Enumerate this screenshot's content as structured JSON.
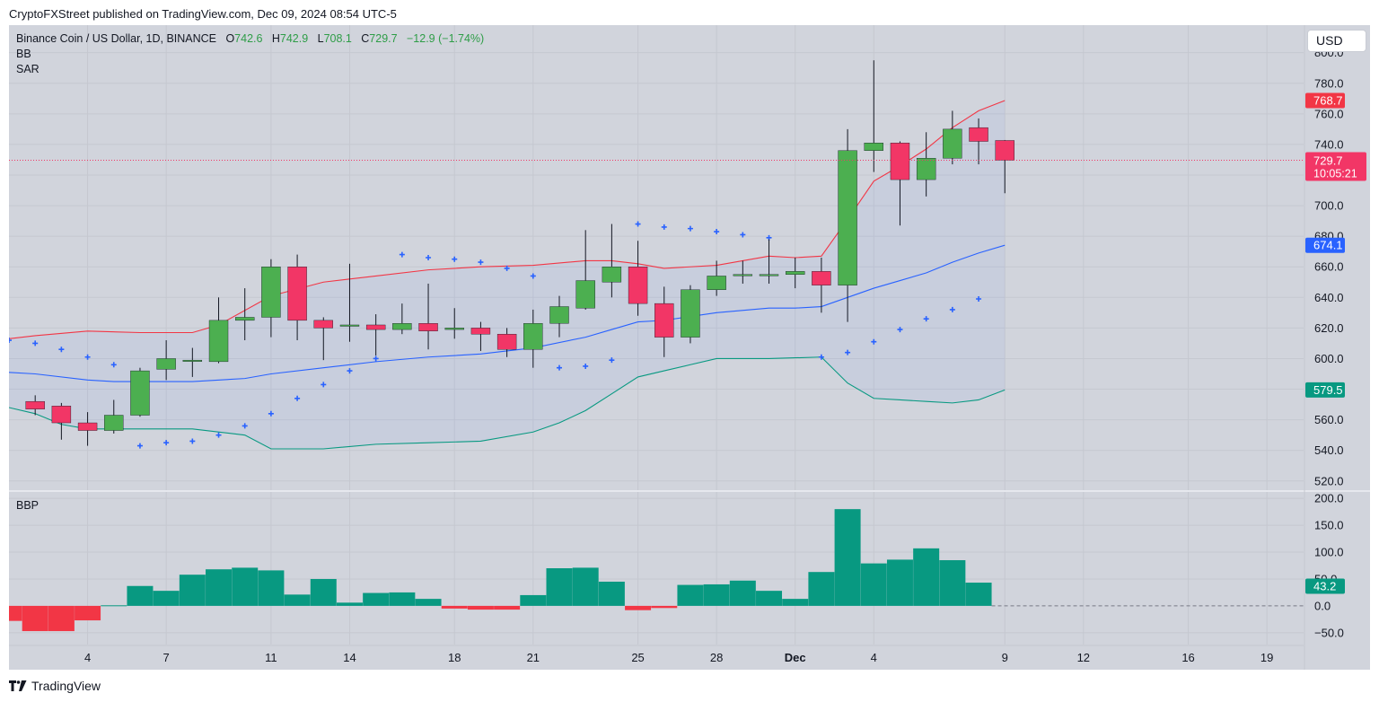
{
  "header": {
    "published": "CryptoFXStreet published on TradingView.com, Dec 09, 2024 08:54 UTC-5"
  },
  "legend": {
    "symbol": "Binance Coin / US Dollar, 1D, BINANCE",
    "o_label": "O",
    "o": "742.6",
    "h_label": "H",
    "h": "742.9",
    "l_label": "L",
    "l": "708.1",
    "c_label": "C",
    "c": "729.7",
    "change": "−12.9 (−1.74%)",
    "indicator1": "BB",
    "indicator2": "SAR",
    "indicator3": "BBP"
  },
  "currency_button": "USD",
  "footer": {
    "brand": "TradingView"
  },
  "colors": {
    "up": "#4caf50",
    "down": "#f23666",
    "bb_upper": "#f23645",
    "bb_basis": "#2962ff",
    "bb_lower": "#089981",
    "sar": "#2962ff",
    "bbp_pos": "#089981",
    "bbp_neg": "#f23645",
    "bg": "#d1d4dc"
  },
  "chart_data": [
    {
      "type": "candlestick",
      "title": "Binance Coin / US Dollar, 1D, BINANCE",
      "x_ticks": [
        {
          "day": 4,
          "label": "4"
        },
        {
          "day": 7,
          "label": "7"
        },
        {
          "day": 11,
          "label": "11"
        },
        {
          "day": 14,
          "label": "14"
        },
        {
          "day": 18,
          "label": "18"
        },
        {
          "day": 21,
          "label": "21"
        },
        {
          "day": 25,
          "label": "25"
        },
        {
          "day": 28,
          "label": "28"
        },
        {
          "day": 31,
          "label": "Dec"
        },
        {
          "day": 34,
          "label": "4"
        },
        {
          "day": 39,
          "label": "9"
        },
        {
          "day": 42,
          "label": "12"
        },
        {
          "day": 46,
          "label": "16"
        },
        {
          "day": 49,
          "label": "19"
        }
      ],
      "y_ticks": [
        "520.0",
        "540.0",
        "560.0",
        "580.0",
        "600.0",
        "620.0",
        "640.0",
        "660.0",
        "680.0",
        "700.0",
        "720.0",
        "740.0",
        "760.0",
        "780.0",
        "800.0"
      ],
      "ylim": [
        514,
        818
      ],
      "xlim": [
        1.0,
        50.4
      ],
      "candles": [
        {
          "day": 2,
          "o": 572,
          "h": 576,
          "l": 563,
          "c": 567
        },
        {
          "day": 3,
          "o": 569,
          "h": 571,
          "l": 547,
          "c": 558
        },
        {
          "day": 4,
          "o": 558,
          "h": 565,
          "l": 543,
          "c": 553
        },
        {
          "day": 5,
          "o": 553,
          "h": 573,
          "l": 551,
          "c": 563
        },
        {
          "day": 6,
          "o": 563,
          "h": 594,
          "l": 562,
          "c": 592
        },
        {
          "day": 7,
          "o": 593,
          "h": 612,
          "l": 586,
          "c": 600
        },
        {
          "day": 8,
          "o": 599,
          "h": 607,
          "l": 588,
          "c": 599
        },
        {
          "day": 9,
          "o": 598,
          "h": 640,
          "l": 597,
          "c": 625
        },
        {
          "day": 10,
          "o": 625,
          "h": 646,
          "l": 612,
          "c": 627
        },
        {
          "day": 11,
          "o": 627,
          "h": 665,
          "l": 614,
          "c": 660
        },
        {
          "day": 12,
          "o": 660,
          "h": 668,
          "l": 612,
          "c": 625
        },
        {
          "day": 13,
          "o": 625,
          "h": 627,
          "l": 599,
          "c": 620
        },
        {
          "day": 14,
          "o": 622,
          "h": 662,
          "l": 611,
          "c": 622
        },
        {
          "day": 15,
          "o": 622,
          "h": 629,
          "l": 602,
          "c": 619
        },
        {
          "day": 16,
          "o": 619,
          "h": 636,
          "l": 616,
          "c": 623
        },
        {
          "day": 17,
          "o": 623,
          "h": 649,
          "l": 606,
          "c": 618
        },
        {
          "day": 18,
          "o": 619,
          "h": 633,
          "l": 613,
          "c": 620
        },
        {
          "day": 19,
          "o": 620,
          "h": 624,
          "l": 605,
          "c": 616
        },
        {
          "day": 20,
          "o": 616,
          "h": 620,
          "l": 601,
          "c": 606
        },
        {
          "day": 21,
          "o": 606,
          "h": 632,
          "l": 594,
          "c": 623
        },
        {
          "day": 22,
          "o": 623,
          "h": 641,
          "l": 614,
          "c": 634
        },
        {
          "day": 23,
          "o": 633,
          "h": 684,
          "l": 632,
          "c": 651
        },
        {
          "day": 24,
          "o": 650,
          "h": 688,
          "l": 640,
          "c": 660
        },
        {
          "day": 25,
          "o": 660,
          "h": 677,
          "l": 628,
          "c": 636
        },
        {
          "day": 26,
          "o": 636,
          "h": 647,
          "l": 601,
          "c": 614
        },
        {
          "day": 27,
          "o": 614,
          "h": 648,
          "l": 610,
          "c": 645
        },
        {
          "day": 28,
          "o": 645,
          "h": 664,
          "l": 641,
          "c": 654
        },
        {
          "day": 29,
          "o": 655,
          "h": 664,
          "l": 649,
          "c": 655
        },
        {
          "day": 30,
          "o": 655,
          "h": 678,
          "l": 649,
          "c": 655
        },
        {
          "day": 31,
          "o": 655,
          "h": 666,
          "l": 646,
          "c": 657
        },
        {
          "day": 32,
          "o": 657,
          "h": 666,
          "l": 630,
          "c": 648
        },
        {
          "day": 33,
          "o": 648,
          "h": 750,
          "l": 624,
          "c": 736
        },
        {
          "day": 34,
          "o": 736,
          "h": 795,
          "l": 722,
          "c": 741
        },
        {
          "day": 35,
          "o": 741,
          "h": 742,
          "l": 687,
          "c": 717
        },
        {
          "day": 36,
          "o": 717,
          "h": 748,
          "l": 706,
          "c": 731
        },
        {
          "day": 37,
          "o": 731,
          "h": 762,
          "l": 727,
          "c": 750
        },
        {
          "day": 38,
          "o": 751,
          "h": 757,
          "l": 727,
          "c": 742
        },
        {
          "day": 39,
          "o": 742.6,
          "h": 742.9,
          "l": 708.1,
          "c": 729.7
        }
      ],
      "bb_upper": [
        {
          "day": 1,
          "v": 613
        },
        {
          "day": 2,
          "v": 615
        },
        {
          "day": 4,
          "v": 618
        },
        {
          "day": 6,
          "v": 617
        },
        {
          "day": 8,
          "v": 617
        },
        {
          "day": 9,
          "v": 622
        },
        {
          "day": 11,
          "v": 641
        },
        {
          "day": 13,
          "v": 650
        },
        {
          "day": 15,
          "v": 654
        },
        {
          "day": 17,
          "v": 658
        },
        {
          "day": 19,
          "v": 660
        },
        {
          "day": 21,
          "v": 661
        },
        {
          "day": 23,
          "v": 664
        },
        {
          "day": 24,
          "v": 664
        },
        {
          "day": 25,
          "v": 662
        },
        {
          "day": 26,
          "v": 659
        },
        {
          "day": 28,
          "v": 661
        },
        {
          "day": 29,
          "v": 664
        },
        {
          "day": 30,
          "v": 667
        },
        {
          "day": 31,
          "v": 666
        },
        {
          "day": 32,
          "v": 667
        },
        {
          "day": 33,
          "v": 691
        },
        {
          "day": 34,
          "v": 716
        },
        {
          "day": 35,
          "v": 726
        },
        {
          "day": 36,
          "v": 737
        },
        {
          "day": 37,
          "v": 751
        },
        {
          "day": 38,
          "v": 762
        },
        {
          "day": 39,
          "v": 768.7
        }
      ],
      "bb_basis": [
        {
          "day": 1,
          "v": 591
        },
        {
          "day": 2,
          "v": 590
        },
        {
          "day": 4,
          "v": 586
        },
        {
          "day": 5,
          "v": 585
        },
        {
          "day": 6,
          "v": 585
        },
        {
          "day": 8,
          "v": 585
        },
        {
          "day": 10,
          "v": 587
        },
        {
          "day": 11,
          "v": 590
        },
        {
          "day": 13,
          "v": 594
        },
        {
          "day": 15,
          "v": 598
        },
        {
          "day": 17,
          "v": 601
        },
        {
          "day": 19,
          "v": 603
        },
        {
          "day": 21,
          "v": 607
        },
        {
          "day": 23,
          "v": 614
        },
        {
          "day": 24,
          "v": 619
        },
        {
          "day": 25,
          "v": 624
        },
        {
          "day": 26,
          "v": 625
        },
        {
          "day": 28,
          "v": 630
        },
        {
          "day": 30,
          "v": 633
        },
        {
          "day": 31,
          "v": 633
        },
        {
          "day": 32,
          "v": 634
        },
        {
          "day": 33,
          "v": 640
        },
        {
          "day": 34,
          "v": 646
        },
        {
          "day": 35,
          "v": 651
        },
        {
          "day": 36,
          "v": 656
        },
        {
          "day": 37,
          "v": 663
        },
        {
          "day": 38,
          "v": 669
        },
        {
          "day": 39,
          "v": 674.1
        }
      ],
      "bb_lower": [
        {
          "day": 1,
          "v": 568
        },
        {
          "day": 2,
          "v": 564
        },
        {
          "day": 3,
          "v": 557
        },
        {
          "day": 4,
          "v": 554
        },
        {
          "day": 8,
          "v": 554
        },
        {
          "day": 10,
          "v": 550
        },
        {
          "day": 11,
          "v": 541
        },
        {
          "day": 13,
          "v": 541
        },
        {
          "day": 15,
          "v": 544
        },
        {
          "day": 17,
          "v": 545
        },
        {
          "day": 19,
          "v": 546
        },
        {
          "day": 21,
          "v": 552
        },
        {
          "day": 22,
          "v": 558
        },
        {
          "day": 23,
          "v": 566
        },
        {
          "day": 24,
          "v": 577
        },
        {
          "day": 25,
          "v": 588
        },
        {
          "day": 26,
          "v": 592
        },
        {
          "day": 27,
          "v": 596
        },
        {
          "day": 28,
          "v": 600
        },
        {
          "day": 30,
          "v": 600
        },
        {
          "day": 32,
          "v": 601
        },
        {
          "day": 33,
          "v": 584
        },
        {
          "day": 34,
          "v": 574
        },
        {
          "day": 35,
          "v": 573
        },
        {
          "day": 36,
          "v": 572
        },
        {
          "day": 37,
          "v": 571
        },
        {
          "day": 38,
          "v": 573
        },
        {
          "day": 39,
          "v": 579.5
        }
      ],
      "sar": [
        {
          "day": 1,
          "v": 612
        },
        {
          "day": 2,
          "v": 610
        },
        {
          "day": 3,
          "v": 606
        },
        {
          "day": 4,
          "v": 601
        },
        {
          "day": 5,
          "v": 596
        },
        {
          "day": 6,
          "v": 543
        },
        {
          "day": 7,
          "v": 545
        },
        {
          "day": 8,
          "v": 546
        },
        {
          "day": 9,
          "v": 550
        },
        {
          "day": 10,
          "v": 556
        },
        {
          "day": 11,
          "v": 564
        },
        {
          "day": 12,
          "v": 574
        },
        {
          "day": 13,
          "v": 583
        },
        {
          "day": 14,
          "v": 592
        },
        {
          "day": 15,
          "v": 600
        },
        {
          "day": 16,
          "v": 668
        },
        {
          "day": 17,
          "v": 666
        },
        {
          "day": 18,
          "v": 665
        },
        {
          "day": 19,
          "v": 663
        },
        {
          "day": 20,
          "v": 659
        },
        {
          "day": 21,
          "v": 654
        },
        {
          "day": 22,
          "v": 594
        },
        {
          "day": 23,
          "v": 595
        },
        {
          "day": 24,
          "v": 599
        },
        {
          "day": 25,
          "v": 688
        },
        {
          "day": 26,
          "v": 686
        },
        {
          "day": 27,
          "v": 685
        },
        {
          "day": 28,
          "v": 683
        },
        {
          "day": 29,
          "v": 681
        },
        {
          "day": 30,
          "v": 679
        },
        {
          "day": 32,
          "v": 601
        },
        {
          "day": 33,
          "v": 604
        },
        {
          "day": 34,
          "v": 611
        },
        {
          "day": 35,
          "v": 619
        },
        {
          "day": 36,
          "v": 626
        },
        {
          "day": 37,
          "v": 632
        },
        {
          "day": 38,
          "v": 639
        }
      ],
      "price_labels": [
        {
          "name": "bb-upper-label",
          "value": "768.7",
          "v": 768.7,
          "color": "#f23645"
        },
        {
          "name": "last-price-label",
          "value": "729.7",
          "v": 729.7,
          "color": "#f23666",
          "countdown": "10:05:21"
        },
        {
          "name": "bb-basis-label",
          "value": "674.1",
          "v": 674.1,
          "color": "#2962ff"
        },
        {
          "name": "bb-lower-label",
          "value": "579.5",
          "v": 579.5,
          "color": "#089981"
        }
      ]
    },
    {
      "type": "bar",
      "title": "BBP",
      "y_ticks": [
        "−50.0",
        "0.0",
        "50.0",
        "100.0",
        "150.0",
        "200.0"
      ],
      "y_tick_values": [
        -50,
        0,
        50,
        100,
        150,
        200
      ],
      "ylim": [
        -72,
        212
      ],
      "bars": [
        {
          "day": 1,
          "v": -28
        },
        {
          "day": 2,
          "v": -47
        },
        {
          "day": 3,
          "v": -47
        },
        {
          "day": 4,
          "v": -27
        },
        {
          "day": 5,
          "v": 1
        },
        {
          "day": 6,
          "v": 37
        },
        {
          "day": 7,
          "v": 28
        },
        {
          "day": 8,
          "v": 58
        },
        {
          "day": 9,
          "v": 68
        },
        {
          "day": 10,
          "v": 71
        },
        {
          "day": 11,
          "v": 66
        },
        {
          "day": 12,
          "v": 21
        },
        {
          "day": 13,
          "v": 50
        },
        {
          "day": 14,
          "v": 6
        },
        {
          "day": 15,
          "v": 24
        },
        {
          "day": 16,
          "v": 25
        },
        {
          "day": 17,
          "v": 13
        },
        {
          "day": 18,
          "v": -5
        },
        {
          "day": 19,
          "v": -7
        },
        {
          "day": 20,
          "v": -7
        },
        {
          "day": 21,
          "v": 20
        },
        {
          "day": 22,
          "v": 70
        },
        {
          "day": 23,
          "v": 71
        },
        {
          "day": 24,
          "v": 45
        },
        {
          "day": 25,
          "v": -8
        },
        {
          "day": 26,
          "v": -4
        },
        {
          "day": 27,
          "v": 39
        },
        {
          "day": 28,
          "v": 40
        },
        {
          "day": 29,
          "v": 47
        },
        {
          "day": 30,
          "v": 28
        },
        {
          "day": 31,
          "v": 13
        },
        {
          "day": 32,
          "v": 63
        },
        {
          "day": 33,
          "v": 180
        },
        {
          "day": 34,
          "v": 79
        },
        {
          "day": 35,
          "v": 86
        },
        {
          "day": 36,
          "v": 107
        },
        {
          "day": 37,
          "v": 85
        },
        {
          "day": 38,
          "v": 43.2
        }
      ],
      "last_value_label": "43.2",
      "last_value": 43.2
    }
  ]
}
